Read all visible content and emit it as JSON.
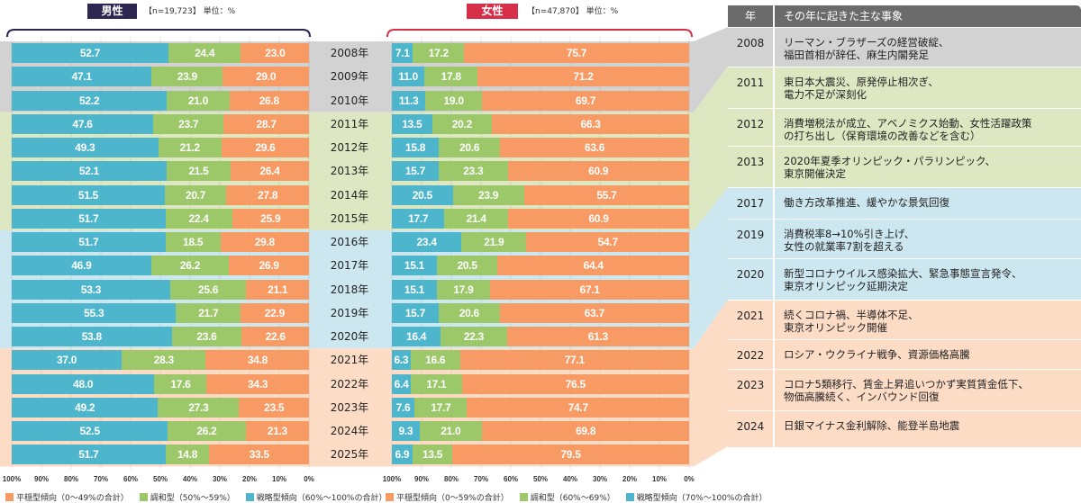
{
  "colors": {
    "strategic": "#4db6cc",
    "harmony": "#9cc86a",
    "stable": "#f79a63",
    "male_badge": "#2c2650",
    "female_badge": "#d72f4a",
    "band_2008": "#d2d2d2",
    "band_2011": "#dde7c1",
    "band_2016": "#cde7f0",
    "band_2021": "#fddcc6",
    "table_head": "#6b6b6b"
  },
  "male": {
    "title": "男性",
    "meta": "【n=19,723】 単位：%",
    "legend": [
      {
        "key": "stable",
        "label": "平穏型傾向（0〜49%の合計）"
      },
      {
        "key": "harmony",
        "label": "調和型（50%〜59%）"
      },
      {
        "key": "strategic",
        "label": "戦略型傾向（60%〜100%の合計）"
      }
    ]
  },
  "female": {
    "title": "女性",
    "meta": "【n=47,870】 単位：%",
    "legend": [
      {
        "key": "stable",
        "label": "平穏型傾向（0〜59%の合計）"
      },
      {
        "key": "harmony",
        "label": "調和型（60%〜69%）"
      },
      {
        "key": "strategic",
        "label": "戦略型傾向（70%〜100%の合計）"
      }
    ]
  },
  "tick_labels": [
    "100%",
    "90%",
    "80%",
    "70%",
    "60%",
    "50%",
    "40%",
    "30%",
    "20%",
    "10%",
    "0%"
  ],
  "chart_data": [
    {
      "type": "bar",
      "title": "男性",
      "subtitle": "【n=19,723】 単位：%",
      "orientation": "horizontal-stacked",
      "xlim": [
        100,
        0
      ],
      "categories": [
        "2008年",
        "2009年",
        "2010年",
        "2011年",
        "2012年",
        "2013年",
        "2014年",
        "2015年",
        "2016年",
        "2017年",
        "2018年",
        "2019年",
        "2020年",
        "2021年",
        "2022年",
        "2023年",
        "2024年",
        "2025年"
      ],
      "series": [
        {
          "name": "戦略型傾向（60%〜100%の合計）",
          "key": "strategic",
          "values": [
            52.7,
            47.1,
            52.2,
            47.6,
            49.3,
            52.1,
            51.5,
            51.7,
            51.7,
            46.9,
            53.3,
            55.3,
            53.8,
            37.0,
            48.0,
            49.2,
            52.5,
            51.7
          ]
        },
        {
          "name": "調和型（50%〜59%）",
          "key": "harmony",
          "values": [
            24.4,
            23.9,
            21.0,
            23.7,
            21.2,
            21.5,
            20.7,
            22.4,
            18.5,
            26.2,
            25.6,
            21.7,
            23.6,
            28.3,
            17.6,
            27.3,
            26.2,
            14.8
          ]
        },
        {
          "name": "平穏型傾向（0〜49%の合計）",
          "key": "stable",
          "values": [
            23.0,
            29.0,
            26.8,
            28.7,
            29.6,
            26.4,
            27.8,
            25.9,
            29.8,
            26.9,
            21.1,
            22.9,
            22.6,
            34.8,
            34.3,
            23.5,
            21.3,
            33.5
          ]
        }
      ],
      "legend": "bottom"
    },
    {
      "type": "bar",
      "title": "女性",
      "subtitle": "【n=47,870】 単位：%",
      "orientation": "horizontal-stacked",
      "xlim": [
        100,
        0
      ],
      "categories": [
        "2008年",
        "2009年",
        "2010年",
        "2011年",
        "2012年",
        "2013年",
        "2014年",
        "2015年",
        "2016年",
        "2017年",
        "2018年",
        "2019年",
        "2020年",
        "2021年",
        "2022年",
        "2023年",
        "2024年",
        "2025年"
      ],
      "series": [
        {
          "name": "戦略型傾向（70%〜100%の合計）",
          "key": "strategic",
          "values": [
            7.1,
            11.0,
            11.3,
            13.5,
            15.8,
            15.7,
            20.5,
            17.7,
            23.4,
            15.1,
            15.1,
            15.7,
            16.4,
            6.3,
            6.4,
            7.6,
            9.3,
            6.9
          ]
        },
        {
          "name": "調和型（60%〜69%）",
          "key": "harmony",
          "values": [
            17.2,
            17.8,
            19.0,
            20.2,
            20.6,
            23.3,
            23.9,
            21.4,
            21.9,
            20.5,
            17.9,
            20.6,
            22.3,
            16.6,
            17.1,
            17.7,
            21.0,
            13.5
          ]
        },
        {
          "name": "平穏型傾向（0〜59%の合計）",
          "key": "stable",
          "values": [
            75.7,
            71.2,
            69.7,
            66.3,
            63.6,
            60.9,
            55.7,
            60.9,
            54.7,
            64.4,
            67.1,
            63.7,
            61.3,
            77.1,
            76.5,
            74.7,
            69.8,
            79.5
          ]
        }
      ],
      "legend": "bottom"
    }
  ],
  "table": {
    "header_year": "年",
    "header_event": "その年に起きた主な事象",
    "rows": [
      {
        "year": "2008",
        "group": "band_2008",
        "lines": [
          "リーマン・ブラザーズの経営破綻、",
          "福田首相が辞任、麻生内閣発足"
        ]
      },
      {
        "year": "2011",
        "group": "band_2011",
        "lines": [
          "東日本大震災、原発停止相次ぎ、",
          "電力不足が深刻化"
        ]
      },
      {
        "year": "2012",
        "group": "band_2011",
        "lines": [
          "消費増税法が成立、アベノミクス始動、女性活躍政策",
          "の打ち出し（保育環境の改善などを含む）"
        ]
      },
      {
        "year": "2013",
        "group": "band_2011",
        "lines": [
          "2020年夏季オリンピック・パラリンピック、",
          "東京開催決定"
        ]
      },
      {
        "year": "2017",
        "group": "band_2016",
        "lines": [
          "働き方改革推進、緩やかな景気回復"
        ]
      },
      {
        "year": "2019",
        "group": "band_2016",
        "lines": [
          "消費税率8→10%引き上げ、",
          "女性の就業率7割を超える"
        ]
      },
      {
        "year": "2020",
        "group": "band_2016",
        "lines": [
          "新型コロナウイルス感染拡大、緊急事態宣言発令、",
          "東京オリンピック延期決定"
        ]
      },
      {
        "year": "2021",
        "group": "band_2021",
        "lines": [
          "続くコロナ禍、半導体不足、",
          "東京オリンピック開催"
        ]
      },
      {
        "year": "2022",
        "group": "band_2021",
        "lines": [
          "ロシア・ウクライナ戦争、資源価格高騰"
        ]
      },
      {
        "year": "2023",
        "group": "band_2021",
        "lines": [
          "コロナ5類移行、賃金上昇追いつかず実質賃金低下、",
          "物価高騰続く、インバウンド回復"
        ]
      },
      {
        "year": "2024",
        "group": "band_2021",
        "lines": [
          "日銀マイナス金利解除、能登半島地震"
        ]
      }
    ]
  }
}
